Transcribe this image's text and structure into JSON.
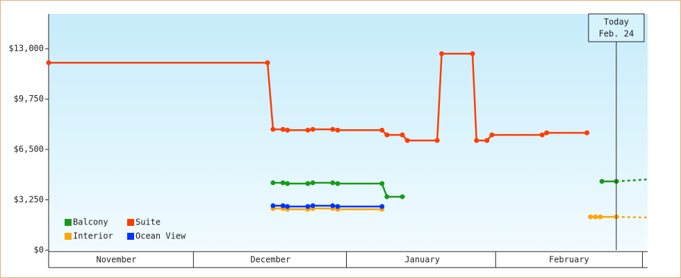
{
  "chart_data": {
    "type": "line",
    "xlim": [
      1.4,
      121.8
    ],
    "xticks": [
      {
        "value": 15,
        "label": "November"
      },
      {
        "value": 46,
        "label": "December"
      },
      {
        "value": 76.5,
        "label": "January"
      },
      {
        "value": 106,
        "label": "February"
      }
    ],
    "ylim": [
      0,
      15250
    ],
    "yticks": [
      {
        "value": 0,
        "label": "$0"
      },
      {
        "value": 3250,
        "label": "$3,250"
      },
      {
        "value": 6500,
        "label": "$6,500"
      },
      {
        "value": 9750,
        "label": "$9,750"
      },
      {
        "value": 13000,
        "label": "$13,000"
      }
    ],
    "today": {
      "x": 115.5,
      "label": "Today",
      "date": "Feb. 24"
    },
    "legend": "lower-left",
    "series": [
      {
        "name": "Balcony",
        "color": "#1a9a1a",
        "x": [
          46.5,
          48.5,
          49.4,
          53.5,
          54.5,
          58.5,
          59.5,
          68.4,
          69.4,
          72.5,
          null,
          112.6,
          115.5
        ],
        "values": [
          4350,
          4350,
          4300,
          4300,
          4350,
          4350,
          4300,
          4300,
          3450,
          3450,
          null,
          4440,
          4440
        ],
        "projected": {
          "x": [
            121.8
          ],
          "values": [
            4570
          ]
        }
      },
      {
        "name": "Suite",
        "color": "#ff3c00",
        "x": [
          1.4,
          45.4,
          46.5,
          48.5,
          49.4,
          53.5,
          54.5,
          58.5,
          59.5,
          68.4,
          69.4,
          72.5,
          73.5,
          79.5,
          80.4,
          86.6,
          87.4,
          89.5,
          90.5,
          100.6,
          101.5,
          109.6
        ],
        "values": [
          12100,
          12100,
          7800,
          7800,
          7750,
          7750,
          7800,
          7800,
          7750,
          7750,
          7440,
          7440,
          7080,
          7080,
          12680,
          12680,
          7080,
          7080,
          7440,
          7440,
          7575,
          7575
        ]
      },
      {
        "name": "Interior",
        "color": "#ffa500",
        "x": [
          46.5,
          48.5,
          49.4,
          53.5,
          54.5,
          58.5,
          59.5,
          68.4,
          null,
          110.3,
          111.3,
          112.3,
          115.5
        ],
        "values": [
          2690,
          2690,
          2640,
          2640,
          2690,
          2690,
          2640,
          2640,
          null,
          2150,
          2150,
          2150,
          2150
        ],
        "projected": {
          "x": [
            121.8
          ],
          "values": [
            2110
          ]
        }
      },
      {
        "name": "Ocean View",
        "color": "#0033ff",
        "x": [
          46.5,
          48.5,
          49.4,
          53.5,
          54.5,
          58.5,
          59.5,
          68.4
        ],
        "values": [
          2870,
          2870,
          2820,
          2820,
          2870,
          2870,
          2820,
          2820
        ]
      }
    ]
  }
}
